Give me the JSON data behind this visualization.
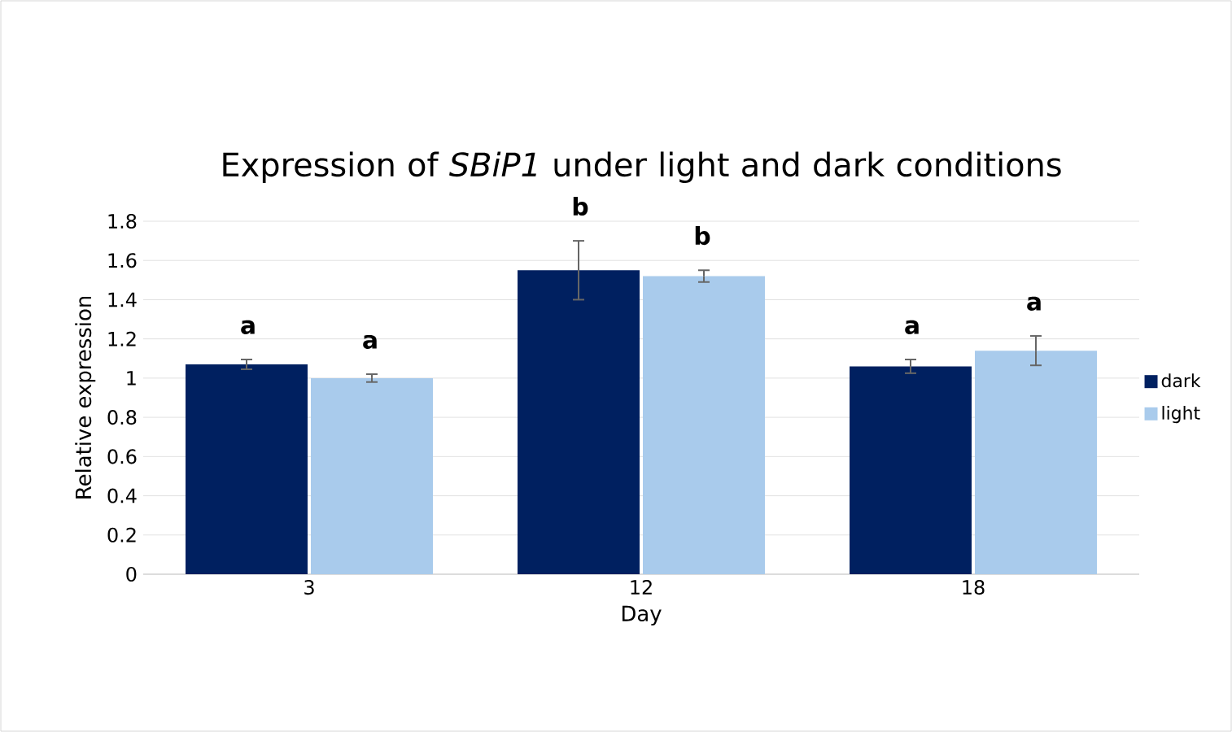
{
  "chart_data": {
    "type": "bar",
    "title": "Expression of *SBiP1* under light and dark conditions",
    "xlabel": "Day",
    "ylabel": "Relative expression",
    "categories": [
      "3",
      "12",
      "18"
    ],
    "series": [
      {
        "name": "dark",
        "color": "#002060",
        "values": [
          1.07,
          1.55,
          1.06
        ],
        "errors": [
          0.025,
          0.15,
          0.035
        ]
      },
      {
        "name": "light",
        "color": "#a9cbec",
        "values": [
          1.0,
          1.52,
          1.14
        ],
        "errors": [
          0.02,
          0.03,
          0.075
        ]
      }
    ],
    "ylim": [
      0,
      1.8
    ],
    "yticks": [
      0,
      0.2,
      0.4,
      0.6,
      0.8,
      1,
      1.2,
      1.4,
      1.6,
      1.8
    ],
    "grid": "y",
    "legend": "right",
    "annotations": [
      "a",
      "a",
      "b",
      "b",
      "a",
      "a"
    ]
  }
}
